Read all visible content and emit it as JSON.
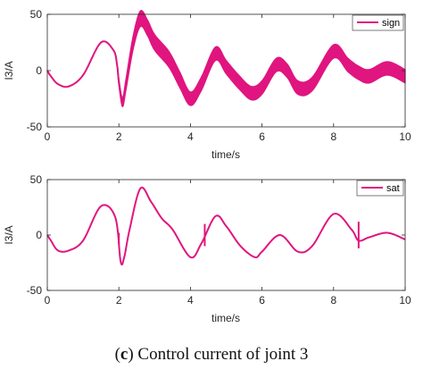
{
  "chart_data": [
    {
      "type": "line",
      "xlabel": "time/s",
      "ylabel": "I3/A",
      "xlim": [
        0,
        10
      ],
      "ylim": [
        -50,
        50
      ],
      "xticks": [
        0,
        2,
        4,
        6,
        8,
        10
      ],
      "yticks": [
        -50,
        0,
        50
      ],
      "legend": {
        "position": "top-right"
      },
      "series": [
        {
          "name": "sign",
          "color": "#e0157f",
          "x": [
            0,
            0.1,
            0.3,
            0.6,
            1.0,
            1.5,
            1.85,
            1.95,
            2.0,
            2.1,
            2.2,
            2.4,
            2.6,
            2.8,
            3.0,
            3.4,
            3.7,
            4.0,
            4.3,
            4.7,
            5.0,
            5.35,
            5.7,
            6.0,
            6.4,
            6.7,
            7.0,
            7.4,
            8.0,
            8.4,
            8.7,
            9.0,
            9.5,
            10.0
          ],
          "y": [
            0,
            -5,
            -12,
            -14,
            -4,
            25,
            18,
            5,
            -10,
            -28,
            -12,
            25,
            46,
            38,
            25,
            10,
            -8,
            -25,
            -12,
            15,
            3,
            -10,
            -20,
            -15,
            5,
            0,
            -15,
            -12,
            17,
            5,
            -2,
            -5,
            2,
            -5
          ],
          "band": [
            0,
            0,
            0,
            0,
            0,
            0,
            0,
            1,
            3,
            4,
            5,
            6,
            7,
            7,
            7,
            7,
            7,
            6,
            6,
            6,
            6,
            6,
            6,
            6,
            6,
            6,
            6,
            6,
            6,
            6,
            6,
            6,
            6,
            6
          ]
        }
      ]
    },
    {
      "type": "line",
      "xlabel": "time/s",
      "ylabel": "I3/A",
      "xlim": [
        0,
        10
      ],
      "ylim": [
        -50,
        50
      ],
      "xticks": [
        0,
        2,
        4,
        6,
        8,
        10
      ],
      "yticks": [
        -50,
        0,
        50
      ],
      "legend": {
        "position": "top-right"
      },
      "series": [
        {
          "name": "sat",
          "color": "#e0157f",
          "x": [
            0,
            0.1,
            0.3,
            0.6,
            1.0,
            1.5,
            1.9,
            2.05,
            2.15,
            2.3,
            2.6,
            2.9,
            3.2,
            3.5,
            4.0,
            4.3,
            4.7,
            5.0,
            5.4,
            5.8,
            6.0,
            6.5,
            7.0,
            7.4,
            8.0,
            8.5,
            8.7,
            9.0,
            9.5,
            10.0
          ],
          "y": [
            0,
            -5,
            -14,
            -14,
            -5,
            26,
            16,
            -24,
            -20,
            5,
            42,
            30,
            15,
            5,
            -20,
            -8,
            17,
            8,
            -10,
            -20,
            -15,
            0,
            -15,
            -10,
            19,
            5,
            -5,
            -2,
            2,
            -4
          ],
          "spikes": [
            {
              "x": 2.0,
              "ymin": -8,
              "ymax": 2
            },
            {
              "x": 4.4,
              "ymin": -10,
              "ymax": 10
            },
            {
              "x": 8.7,
              "ymin": -12,
              "ymax": 12
            }
          ]
        }
      ]
    }
  ],
  "caption": {
    "prefix": "(",
    "letter": "c",
    "text": ") Control current of joint 3"
  }
}
